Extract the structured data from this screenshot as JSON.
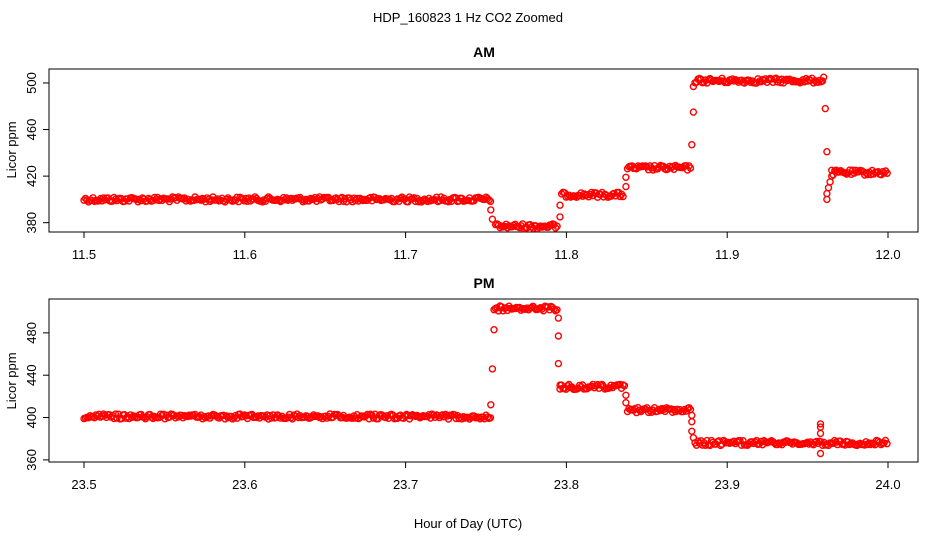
{
  "figure_title": "HDP_160823  1 Hz CO2 Zoomed",
  "x_axis_label": "Hour of Day (UTC)",
  "colors": {
    "points": "#ff0000",
    "axes": "#000000",
    "background": "#ffffff"
  },
  "chart_data": [
    {
      "type": "scatter",
      "title": "AM",
      "xlabel": "",
      "ylabel": "Licor ppm",
      "xlim": [
        11.5,
        12.0
      ],
      "ylim": [
        372,
        512
      ],
      "x_ticks": [
        "11.5",
        "11.6",
        "11.7",
        "11.8",
        "11.9",
        "12.0"
      ],
      "y_ticks": [
        "380",
        "420",
        "460",
        "500"
      ],
      "grid": false,
      "series": [
        {
          "marker": "open-circle",
          "segments": [
            {
              "x_start": 11.5,
              "x_end": 11.753,
              "y": 400
            },
            {
              "x_start": 11.756,
              "x_end": 11.795,
              "y": 377
            },
            {
              "x_start": 11.797,
              "x_end": 11.836,
              "y": 404
            },
            {
              "x_start": 11.838,
              "x_end": 11.878,
              "y": 427
            },
            {
              "x_start": 11.88,
              "x_end": 11.96,
              "y": 502
            },
            {
              "x_start": 11.965,
              "x_end": 12.0,
              "y": 423
            }
          ],
          "transition_points": [
            {
              "x": 11.753,
              "y": 391
            },
            {
              "x": 11.754,
              "y": 383
            },
            {
              "x": 11.796,
              "y": 385
            },
            {
              "x": 11.796,
              "y": 395
            },
            {
              "x": 11.837,
              "y": 411
            },
            {
              "x": 11.837,
              "y": 419
            },
            {
              "x": 11.878,
              "y": 447
            },
            {
              "x": 11.879,
              "y": 475
            },
            {
              "x": 11.879,
              "y": 497
            },
            {
              "x": 11.96,
              "y": 505
            },
            {
              "x": 11.961,
              "y": 478
            },
            {
              "x": 11.962,
              "y": 441
            },
            {
              "x": 11.962,
              "y": 400
            },
            {
              "x": 11.962,
              "y": 405
            },
            {
              "x": 11.963,
              "y": 410
            },
            {
              "x": 11.964,
              "y": 415
            },
            {
              "x": 11.965,
              "y": 420
            }
          ]
        }
      ]
    },
    {
      "type": "scatter",
      "title": "PM",
      "xlabel": "Hour of Day (UTC)",
      "ylabel": "Licor ppm",
      "xlim": [
        23.5,
        24.0
      ],
      "ylim": [
        358,
        512
      ],
      "x_ticks": [
        "23.5",
        "23.6",
        "23.7",
        "23.8",
        "23.9",
        "24.0"
      ],
      "y_ticks": [
        "360",
        "400",
        "440",
        "480"
      ],
      "grid": false,
      "series": [
        {
          "marker": "open-circle",
          "segments": [
            {
              "x_start": 23.5,
              "x_end": 23.753,
              "y": 401
            },
            {
              "x_start": 23.755,
              "x_end": 23.795,
              "y": 503
            },
            {
              "x_start": 23.796,
              "x_end": 23.837,
              "y": 429
            },
            {
              "x_start": 23.838,
              "x_end": 23.878,
              "y": 407
            },
            {
              "x_start": 23.88,
              "x_end": 24.0,
              "y": 376
            }
          ],
          "transition_points": [
            {
              "x": 23.753,
              "y": 412
            },
            {
              "x": 23.754,
              "y": 446
            },
            {
              "x": 23.755,
              "y": 483
            },
            {
              "x": 23.795,
              "y": 494
            },
            {
              "x": 23.795,
              "y": 477
            },
            {
              "x": 23.795,
              "y": 451
            },
            {
              "x": 23.796,
              "y": 427
            },
            {
              "x": 23.837,
              "y": 421
            },
            {
              "x": 23.837,
              "y": 414
            },
            {
              "x": 23.878,
              "y": 402
            },
            {
              "x": 23.878,
              "y": 396
            },
            {
              "x": 23.878,
              "y": 387
            },
            {
              "x": 23.879,
              "y": 381
            },
            {
              "x": 23.958,
              "y": 394
            },
            {
              "x": 23.958,
              "y": 391
            },
            {
              "x": 23.958,
              "y": 385
            },
            {
              "x": 23.958,
              "y": 366
            }
          ]
        }
      ]
    }
  ]
}
